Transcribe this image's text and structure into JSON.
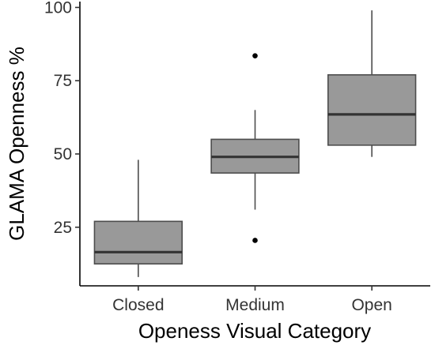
{
  "chart_data": {
    "type": "box",
    "xlabel": "Openess Visual Category",
    "ylabel": "GLAMA Openness %",
    "ylim": [
      5,
      102
    ],
    "yticks": [
      25,
      50,
      75,
      100
    ],
    "grid": false,
    "legend": "none",
    "categories": [
      "Closed",
      "Medium",
      "Open"
    ],
    "boxes": [
      {
        "category": "Closed",
        "whisker_low": 8,
        "q1": 12.5,
        "median": 16.5,
        "q3": 27,
        "whisker_high": 48,
        "outliers": []
      },
      {
        "category": "Medium",
        "whisker_low": 31,
        "q1": 43.5,
        "median": 49,
        "q3": 55,
        "whisker_high": 65,
        "outliers": [
          83.5,
          20.5
        ]
      },
      {
        "category": "Open",
        "whisker_low": 49,
        "q1": 53,
        "median": 63.5,
        "q3": 77,
        "whisker_high": 99,
        "outliers": []
      }
    ],
    "colors": {
      "box_fill": "#999999",
      "box_stroke": "#4d4d4d",
      "median": "#333333",
      "outlier": "#000000",
      "axis": "#000000"
    }
  }
}
